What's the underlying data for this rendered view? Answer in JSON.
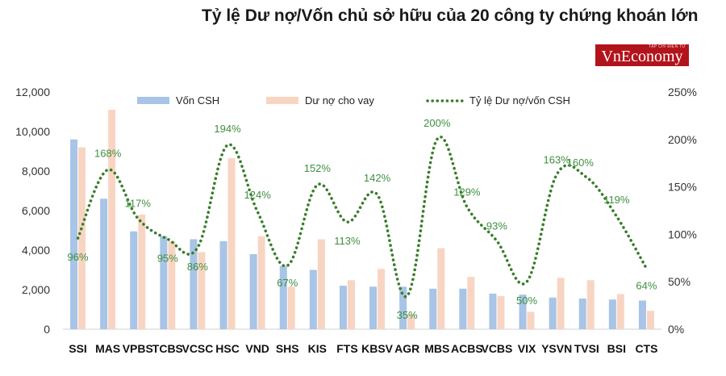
{
  "chart_data": {
    "type": "bar",
    "title": "Tỷ lệ Dư nợ/Vốn chủ sở hữu của 20 công ty chứng khoán lớn",
    "categories": [
      "SSI",
      "MAS",
      "VPBS",
      "TCBS",
      "VCSC",
      "HSC",
      "VND",
      "SHS",
      "KIS",
      "FTS",
      "KBSV",
      "AGR",
      "MBS",
      "ACBS",
      "VCBS",
      "VIX",
      "YSVN",
      "TVSI",
      "BSI",
      "CTS"
    ],
    "series": [
      {
        "name": "Vốn CSH",
        "kind": "bar",
        "color": "#a8c4e6",
        "values": [
          9600,
          6600,
          4950,
          4700,
          4550,
          4450,
          3800,
          3200,
          3000,
          2200,
          2150,
          2150,
          2050,
          2050,
          1800,
          1750,
          1600,
          1550,
          1500,
          1450
        ]
      },
      {
        "name": "Dư nợ cho vay",
        "kind": "bar",
        "color": "#f8d5c3",
        "values": [
          9200,
          11100,
          5800,
          4450,
          3900,
          8650,
          4700,
          2150,
          4550,
          2480,
          3050,
          760,
          4100,
          2650,
          1680,
          880,
          2600,
          2480,
          1780,
          930
        ]
      },
      {
        "name": "Tỷ lệ Dư nợ/vốn CSH",
        "kind": "line",
        "style": "dotted",
        "color": "#3a7d2c",
        "values": [
          96,
          168,
          117,
          95,
          86,
          194,
          124,
          67,
          152,
          113,
          142,
          35,
          200,
          129,
          93,
          50,
          163,
          160,
          119,
          64
        ],
        "labels": [
          "96%",
          "168%",
          "117%",
          "95%",
          "86%",
          "194%",
          "124%",
          "67%",
          "152%",
          "113%",
          "142%",
          "35%",
          "200%",
          "129%",
          "93%",
          "50%",
          "163%",
          "160%",
          "119%",
          "64%"
        ]
      }
    ],
    "y_left": {
      "min": 0,
      "max": 12000,
      "ticks": [
        "0",
        "2,000",
        "4,000",
        "6,000",
        "8,000",
        "10,000",
        "12,000"
      ]
    },
    "y_right": {
      "min": 0,
      "max": 250,
      "ticks": [
        "0%",
        "50%",
        "100%",
        "150%",
        "200%",
        "250%"
      ]
    },
    "legend_position": "top"
  },
  "brand": {
    "logo_small": "TẠP CHÍ ĐIỆN TỬ",
    "logo_text": "VnEconomy",
    "logo_color": "#b2141b"
  }
}
